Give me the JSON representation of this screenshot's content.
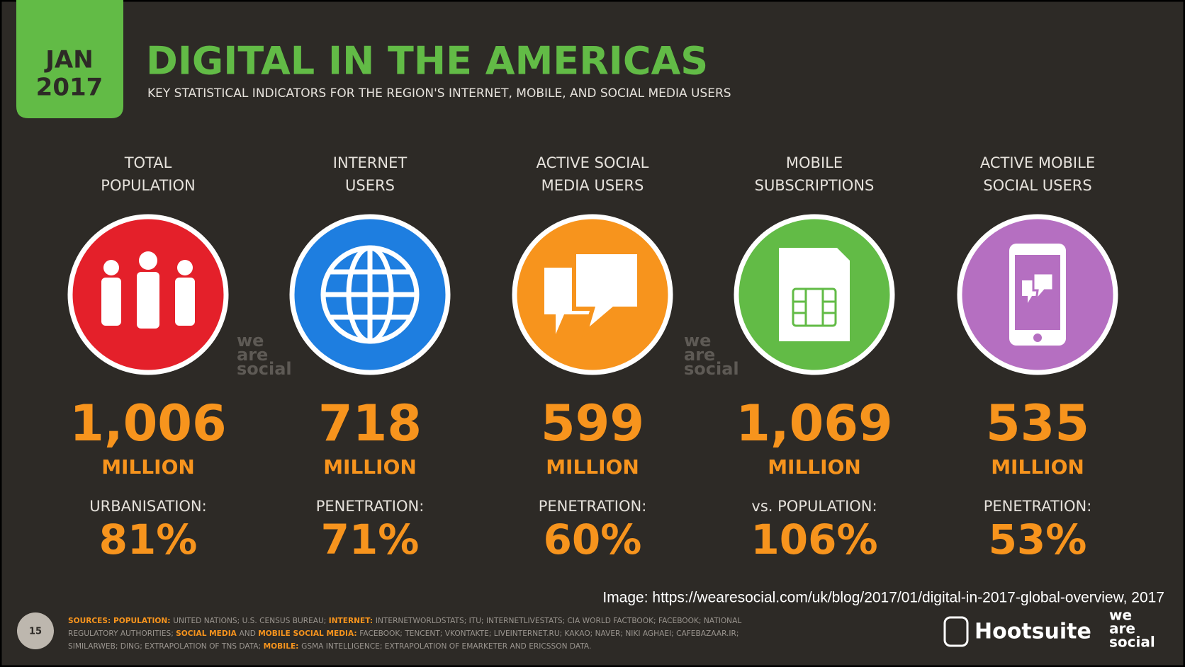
{
  "header": {
    "badge": [
      "JAN",
      "2017"
    ],
    "title": "DIGITAL IN THE AMERICAS",
    "subtitle": "KEY STATISTICAL INDICATORS FOR THE REGION'S INTERNET, MOBILE, AND SOCIAL MEDIA USERS"
  },
  "stats": [
    {
      "label": [
        "TOTAL",
        "POPULATION"
      ],
      "color": "#e4202a",
      "value": "1,006",
      "unit": "MILLION",
      "metric_label": "URBANISATION:",
      "metric_value": "81%"
    },
    {
      "label": [
        "INTERNET",
        "USERS"
      ],
      "color": "#1e7ee0",
      "value": "718",
      "unit": "MILLION",
      "metric_label": "PENETRATION:",
      "metric_value": "71%"
    },
    {
      "label": [
        "ACTIVE SOCIAL",
        "MEDIA USERS"
      ],
      "color": "#f7941d",
      "value": "599",
      "unit": "MILLION",
      "metric_label": "PENETRATION:",
      "metric_value": "60%"
    },
    {
      "label": [
        "MOBILE",
        "SUBSCRIPTIONS"
      ],
      "color": "#62bb46",
      "value": "1,069",
      "unit": "MILLION",
      "metric_label": "vs. POPULATION:",
      "metric_value": "106%"
    },
    {
      "label": [
        "ACTIVE MOBILE",
        "SOCIAL USERS"
      ],
      "color": "#b56fc1",
      "value": "535",
      "unit": "MILLION",
      "metric_label": "PENETRATION:",
      "metric_value": "53%"
    }
  ],
  "watermark": [
    "we",
    "are",
    "social"
  ],
  "caption": "Image: https://wearesocial.com/uk/blog/2017/01/digital-in-2017-global-overview, 2017",
  "footer": {
    "page": "15",
    "sources": [
      {
        "text": "SOURCES: ",
        "color": "#f7941d"
      },
      {
        "text": "POPULATION: ",
        "color": "#f7941d"
      },
      {
        "text": "UNITED NATIONS; U.S. CENSUS BUREAU; ",
        "color": "#9a958f"
      },
      {
        "text": "INTERNET: ",
        "color": "#f7941d"
      },
      {
        "text": "INTERNETWORLDSTATS; ITU; INTERNETLIVESTATS; CIA WORLD FACTBOOK; FACEBOOK; NATIONAL REGULATORY AUTHORITIES; ",
        "color": "#9a958f"
      },
      {
        "text": "SOCIAL MEDIA ",
        "color": "#f7941d"
      },
      {
        "text": "AND ",
        "color": "#9a958f"
      },
      {
        "text": "MOBILE SOCIAL MEDIA: ",
        "color": "#f7941d"
      },
      {
        "text": "FACEBOOK; TENCENT; VKONTAKTE; LIVEINTERNET.RU; KAKAO; NAVER; NIKI AGHAEI; CAFEBAZAAR.IR; SIMILARWEB; DING; EXTRAPOLATION OF TNS DATA; ",
        "color": "#9a958f"
      },
      {
        "text": "MOBILE: ",
        "color": "#f7941d"
      },
      {
        "text": "GSMA INTELLIGENCE; EXTRAPOLATION OF EMARKETER AND ERICSSON DATA.",
        "color": "#9a958f"
      }
    ],
    "logos": [
      "Hootsuite",
      "we",
      "are",
      "social"
    ]
  }
}
